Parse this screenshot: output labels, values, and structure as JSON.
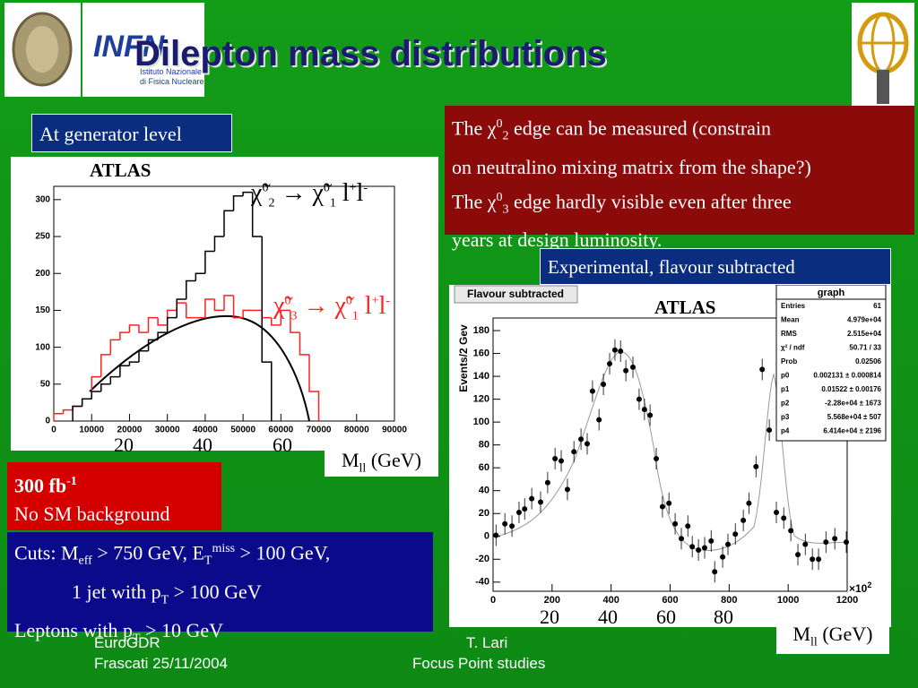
{
  "title": "Dilepton mass distributions",
  "logos": {
    "infn": "INFN",
    "infn_sub1": "Istituto Nazionale",
    "infn_sub2": "di Fisica Nucleare"
  },
  "generator_label": "At generator level",
  "experimental_label": "Experimental, flavour subtracted",
  "note": {
    "l1": [
      "The χ",
      "0",
      "2",
      " edge can be measured (constrain"
    ],
    "l2": "on neutralino mixing matrix from the shape?)",
    "l3": [
      "The χ",
      "0",
      "3",
      " edge hardly visible even after three"
    ],
    "l4": "years at design luminosity."
  },
  "lumi": {
    "l1": [
      "300 fb",
      "-1"
    ],
    "l2": "No SM background"
  },
  "cuts": {
    "l1": [
      "Cuts: M",
      "eff",
      " > 750 GeV, E",
      "T",
      "miss",
      " > 100 GeV,"
    ],
    "l2": [
      "1 jet with p",
      "T",
      " > 100 GeV"
    ],
    "l3": [
      "Leptons with p",
      "T",
      " > 10 GeV"
    ]
  },
  "left_plot": {
    "atlas": "ATLAS",
    "label_black": [
      "χ̃",
      "0",
      "2",
      " → χ̃",
      "0",
      "1",
      " l",
      "+",
      "l",
      "-"
    ],
    "label_red": [
      "χ̃",
      "0",
      "3",
      " → χ̃",
      "0",
      "1",
      " l",
      "+",
      "l",
      "-"
    ],
    "xlim": [
      0,
      90000
    ],
    "ylim": [
      0,
      318
    ],
    "xticks": [
      0,
      10000,
      20000,
      30000,
      40000,
      50000,
      60000,
      70000,
      80000,
      90000
    ],
    "yticks": [
      0,
      50,
      100,
      150,
      200,
      250,
      300
    ],
    "gev_labels": [
      "20",
      "40",
      "60"
    ],
    "xlabel": [
      "M",
      "ll",
      " (GeV)"
    ],
    "black": {
      "color": "#000000",
      "bins": [
        5000,
        7500,
        10000,
        12500,
        15000,
        17500,
        20000,
        22500,
        25000,
        27500,
        30000,
        32500,
        35000,
        37500,
        40000,
        42500,
        45000,
        47500,
        50000,
        52500,
        55000,
        57500
      ],
      "counts": [
        20,
        30,
        40,
        50,
        60,
        75,
        80,
        95,
        110,
        120,
        140,
        165,
        190,
        200,
        230,
        250,
        285,
        305,
        310,
        250,
        80
      ]
    },
    "red": {
      "color": "#ff2020",
      "bins": [
        0,
        2500,
        5000,
        7500,
        10000,
        12500,
        15000,
        17500,
        20000,
        22500,
        25000,
        27500,
        30000,
        32500,
        35000,
        37500,
        40000,
        42500,
        45000,
        47500,
        50000,
        52500,
        55000,
        57500,
        60000,
        62500,
        65000,
        67500,
        70000
      ],
      "counts": [
        10,
        15,
        20,
        30,
        60,
        90,
        110,
        120,
        130,
        120,
        140,
        130,
        150,
        160,
        140,
        140,
        165,
        150,
        170,
        140,
        150,
        150,
        140,
        130,
        150,
        120,
        90,
        40
      ]
    }
  },
  "right_plot": {
    "title": "Flavour subtracted",
    "atlas": "ATLAS",
    "ylabel": "Events/2 Gev",
    "xscale": "×10",
    "xscale_exp": "2",
    "xlim": [
      0,
      1200
    ],
    "ylim": [
      -48,
      191
    ],
    "xticks": [
      0,
      200,
      400,
      600,
      800,
      1000,
      1200
    ],
    "yticks": [
      -40,
      -20,
      0,
      20,
      40,
      60,
      80,
      100,
      120,
      140,
      160,
      180
    ],
    "gev_labels": [
      "20",
      "40",
      "60",
      "80"
    ],
    "xlabel": [
      "M",
      "ll",
      " (GeV)"
    ],
    "color": "#000000",
    "x": [
      10,
      40,
      64,
      88,
      107,
      131,
      161,
      185,
      210,
      231,
      252,
      274,
      298,
      319,
      337,
      359,
      374,
      395,
      413,
      432,
      450,
      474,
      495,
      513,
      532,
      553,
      574,
      596,
      617,
      638,
      660,
      675,
      696,
      717,
      739,
      751,
      778,
      796,
      821,
      848,
      867,
      891,
      912,
      936,
      960,
      985,
      1009,
      1033,
      1058,
      1082,
      1103,
      1128,
      1158,
      1197
    ],
    "y": [
      1,
      11,
      9,
      21,
      24,
      33,
      30,
      47,
      68,
      66,
      41,
      74,
      85,
      81,
      127,
      102,
      133,
      151,
      163,
      162,
      145,
      148,
      120,
      111,
      106,
      68,
      26,
      29,
      11,
      -2,
      9,
      -9,
      -12,
      -10,
      -4,
      -31,
      -18,
      -7,
      2,
      14,
      29,
      61,
      146,
      93,
      21,
      16,
      5,
      -16,
      -7,
      -20,
      -20,
      -5,
      -2,
      -5
    ],
    "stats": {
      "name": "graph",
      "rows": [
        [
          "Entries",
          "61"
        ],
        [
          "Mean",
          "4.979e+04"
        ],
        [
          "RMS",
          "2.515e+04"
        ],
        [
          "χ² / ndf",
          "50.71 / 33"
        ],
        [
          "Prob",
          "0.02506"
        ],
        [
          "p0",
          "0.002131 ± 0.000814"
        ],
        [
          "p1",
          "0.01522 ± 0.00176"
        ],
        [
          "p2",
          "-2.28e+04 ± 1673"
        ],
        [
          "p3",
          "5.568e+04 ± 507"
        ],
        [
          "p4",
          "6.414e+04 ± 2196"
        ]
      ]
    }
  },
  "footer": {
    "left1": "EuroGDR",
    "left2": "Frascati 25/11/2004",
    "mid1": "T. Lari",
    "mid2": "Focus Point studies"
  }
}
